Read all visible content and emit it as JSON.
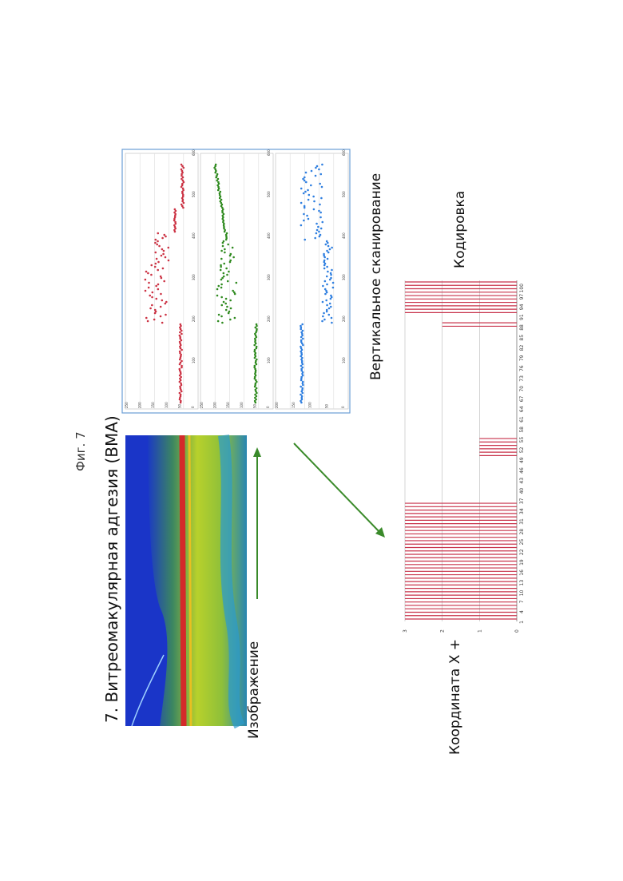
{
  "figure": {
    "fig_label": "Фиг. 7",
    "title": "7. Витреомакулярная адгезия (ВМА)",
    "image_label": "Изображение",
    "vertical_scan_label": "Вертикальное сканирование",
    "coding_label": "Кодировка",
    "coordinate_label": "Координата X +"
  },
  "colors": {
    "red_series": "#cc3344",
    "green_series": "#2f8a1f",
    "blue_series": "#2f7fe0",
    "bar_color": "#c8324a",
    "arrow_color": "#3a8a2a",
    "oct_background": "#1a35c8"
  },
  "scan_panels": [
    {
      "name": "red",
      "x_ticks": [
        "100",
        "200",
        "300",
        "400",
        "500",
        "600"
      ],
      "y_ticks": [
        "250",
        "200",
        "150",
        "100",
        "50",
        "0"
      ]
    },
    {
      "name": "green",
      "x_ticks": [
        "100",
        "200",
        "300",
        "400",
        "500",
        "600"
      ],
      "y_ticks": [
        "250",
        "200",
        "150",
        "100",
        "50",
        "0"
      ]
    },
    {
      "name": "blue",
      "x_ticks": [
        "100",
        "200",
        "300",
        "400",
        "500",
        "600"
      ],
      "y_ticks": [
        "200",
        "150",
        "100",
        "50",
        "0"
      ]
    }
  ],
  "chart_data": {
    "type": "bar",
    "ylim": [
      0,
      3
    ],
    "y_ticks": [
      "0",
      "1",
      "2",
      "3"
    ],
    "x_tick_labels": [
      "1",
      "4",
      "7",
      "10",
      "13",
      "16",
      "19",
      "22",
      "25",
      "28",
      "31",
      "34",
      "37",
      "40",
      "43",
      "46",
      "49",
      "52",
      "55",
      "58",
      "61",
      "64",
      "67",
      "70",
      "73",
      "76",
      "79",
      "82",
      "85",
      "88",
      "91",
      "94",
      "97",
      "100"
    ],
    "segments": [
      {
        "from": 1,
        "to": 35,
        "value": 3
      },
      {
        "from": 36,
        "to": 48,
        "value": 0
      },
      {
        "from": 49,
        "to": 54,
        "value": 1
      },
      {
        "from": 55,
        "to": 86,
        "value": 0
      },
      {
        "from": 87,
        "to": 88,
        "value": 2
      },
      {
        "from": 89,
        "to": 90,
        "value": 0
      },
      {
        "from": 91,
        "to": 100,
        "value": 3
      }
    ]
  }
}
